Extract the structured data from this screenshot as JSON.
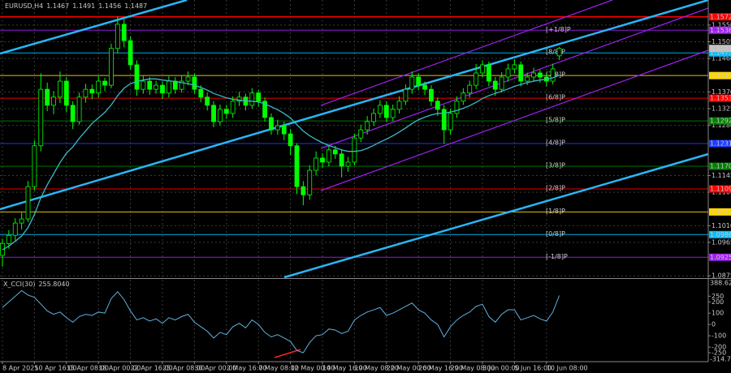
{
  "chart_data": {
    "type": "candlestick",
    "symbol": "EURUSD,H4",
    "categories": [
      "8 Apr 2025",
      null,
      null,
      null,
      null,
      "10 Apr 16:00",
      null,
      null,
      null,
      null,
      "15 Apr 08:00",
      null,
      null,
      null,
      null,
      "18 Apr 00:00",
      null,
      null,
      null,
      null,
      "22 Apr 16:00",
      null,
      null,
      null,
      null,
      "25 Apr 08:00",
      null,
      null,
      null,
      null,
      "30 Apr 00:00",
      null,
      null,
      null,
      null,
      "2 May 16:00",
      null,
      null,
      null,
      null,
      "7 May 08:00",
      null,
      null,
      null,
      null,
      "12 May 00:00",
      null,
      null,
      null,
      null,
      "14 May 16:00",
      null,
      null,
      null,
      null,
      "19 May 08:00",
      null,
      null,
      null,
      null,
      "22 May 00:00",
      null,
      null,
      null,
      null,
      "26 May 16:00",
      null,
      null,
      null,
      null,
      "29 May 08:00",
      null,
      null,
      null,
      null,
      "3 Jun 00:00",
      null,
      null,
      null,
      null,
      "5 Jun 16:00",
      null,
      null,
      null,
      null,
      "10 Jun 08:00",
      null,
      null
    ],
    "open": [
      1.093,
      1.0962,
      1.0984,
      1.1017,
      1.1028,
      1.1115,
      1.1225,
      1.1377,
      1.1334,
      1.1356,
      1.1399,
      1.1334,
      1.129,
      1.1356,
      1.1377,
      1.1367,
      1.1399,
      1.1388,
      1.1487,
      1.1552,
      1.1508,
      1.1443,
      1.1377,
      1.1399,
      1.1377,
      1.1388,
      1.1367,
      1.1399,
      1.1377,
      1.1399,
      1.141,
      1.1377,
      1.1356,
      1.1334,
      1.129,
      1.1323,
      1.1312,
      1.1345,
      1.1356,
      1.1334,
      1.1367,
      1.1345,
      1.1301,
      1.1268,
      1.1279,
      1.1257,
      1.1225,
      1.1115,
      1.1093,
      1.1159,
      1.1192,
      1.1181,
      1.1214,
      1.1203,
      1.117,
      1.1181,
      1.1246,
      1.1268,
      1.129,
      1.1312,
      1.1334,
      1.1301,
      1.1323,
      1.1345,
      1.1377,
      1.141,
      1.1388,
      1.1377,
      1.1345,
      1.1323,
      1.1268,
      1.1312,
      1.1345,
      1.1367,
      1.1388,
      1.1421,
      1.1443,
      1.1399,
      1.1377,
      1.141,
      1.1432,
      1.1443,
      1.1399,
      1.141,
      1.1421,
      1.141,
      1.1399,
      1.1467
    ],
    "high": [
      1.0975,
      1.0998,
      1.103,
      1.1045,
      1.113,
      1.124,
      1.142,
      1.1395,
      1.1372,
      1.1425,
      1.141,
      1.1345,
      1.1368,
      1.1392,
      1.139,
      1.1412,
      1.1408,
      1.15,
      1.1573,
      1.1565,
      1.152,
      1.1455,
      1.1415,
      1.141,
      1.14,
      1.1398,
      1.1412,
      1.141,
      1.1414,
      1.1425,
      1.142,
      1.1388,
      1.1368,
      1.1345,
      1.1336,
      1.1335,
      1.1358,
      1.137,
      1.1365,
      1.138,
      1.1375,
      1.1355,
      1.1312,
      1.1295,
      1.129,
      1.127,
      1.1232,
      1.113,
      1.1172,
      1.121,
      1.1205,
      1.1228,
      1.1225,
      1.1215,
      1.1195,
      1.1258,
      1.1282,
      1.1305,
      1.1325,
      1.1348,
      1.1345,
      1.1336,
      1.1358,
      1.139,
      1.1425,
      1.142,
      1.1398,
      1.1388,
      1.1355,
      1.1335,
      1.1325,
      1.1358,
      1.138,
      1.14,
      1.1445,
      1.1455,
      1.1452,
      1.141,
      1.1423,
      1.1446,
      1.1458,
      1.1452,
      1.1422,
      1.1435,
      1.143,
      1.142,
      1.1446,
      1.1491
    ],
    "low": [
      1.09,
      1.0948,
      1.097,
      1.1,
      1.102,
      1.1105,
      1.121,
      1.1318,
      1.131,
      1.134,
      1.1315,
      1.127,
      1.1282,
      1.1341,
      1.135,
      1.1355,
      1.1372,
      1.138,
      1.1475,
      1.149,
      1.143,
      1.136,
      1.1365,
      1.1362,
      1.1365,
      1.135,
      1.1355,
      1.1365,
      1.1368,
      1.1388,
      1.1365,
      1.1342,
      1.132,
      1.1275,
      1.128,
      1.1298,
      1.13,
      1.1332,
      1.132,
      1.1325,
      1.133,
      1.129,
      1.1255,
      1.1255,
      1.124,
      1.12,
      1.1095,
      1.1065,
      1.108,
      1.1145,
      1.1165,
      1.117,
      1.119,
      1.114,
      1.1155,
      1.1172,
      1.1235,
      1.1255,
      1.1278,
      1.13,
      1.129,
      1.1292,
      1.1312,
      1.1335,
      1.1365,
      1.1375,
      1.1362,
      1.1332,
      1.1305,
      1.123,
      1.1255,
      1.13,
      1.1335,
      1.1355,
      1.1378,
      1.141,
      1.1385,
      1.136,
      1.1368,
      1.1398,
      1.142,
      1.1385,
      1.1388,
      1.1398,
      1.1395,
      1.1385,
      1.139,
      1.1456
    ],
    "close": [
      1.0962,
      1.0984,
      1.1017,
      1.1028,
      1.1115,
      1.1225,
      1.1377,
      1.1334,
      1.1356,
      1.1399,
      1.1334,
      1.129,
      1.1356,
      1.1377,
      1.1367,
      1.1399,
      1.1388,
      1.1487,
      1.1552,
      1.1508,
      1.1443,
      1.1377,
      1.1399,
      1.1377,
      1.1388,
      1.1367,
      1.1399,
      1.1377,
      1.1399,
      1.141,
      1.1377,
      1.1356,
      1.1334,
      1.129,
      1.1323,
      1.1312,
      1.1345,
      1.1356,
      1.1334,
      1.1367,
      1.1345,
      1.1301,
      1.1268,
      1.1279,
      1.1257,
      1.1225,
      1.1115,
      1.1093,
      1.1159,
      1.1192,
      1.1181,
      1.1214,
      1.1203,
      1.117,
      1.1181,
      1.1246,
      1.1268,
      1.129,
      1.1312,
      1.1334,
      1.1301,
      1.1323,
      1.1345,
      1.1377,
      1.141,
      1.1388,
      1.1377,
      1.1345,
      1.1323,
      1.1268,
      1.1312,
      1.1345,
      1.1367,
      1.1388,
      1.1421,
      1.1443,
      1.1399,
      1.1377,
      1.141,
      1.1432,
      1.1443,
      1.1399,
      1.141,
      1.1421,
      1.141,
      1.1399,
      1.1432,
      1.1487
    ],
    "color": "#00ff00",
    "ma": {
      "color": "#3cb9c9",
      "values": [
        1.0945,
        1.0955,
        1.0968,
        1.0982,
        1.1005,
        1.104,
        1.1085,
        1.112,
        1.115,
        1.118,
        1.1205,
        1.1222,
        1.1245,
        1.1265,
        1.1285,
        1.13,
        1.1315,
        1.1335,
        1.136,
        1.138,
        1.1392,
        1.1398,
        1.1402,
        1.1405,
        1.1405,
        1.1402,
        1.14,
        1.1398,
        1.1395,
        1.1392,
        1.1388,
        1.1382,
        1.1375,
        1.1366,
        1.136,
        1.1354,
        1.135,
        1.1348,
        1.1346,
        1.1345,
        1.1343,
        1.1338,
        1.133,
        1.1322,
        1.1312,
        1.13,
        1.1282,
        1.1265,
        1.1252,
        1.1242,
        1.1233,
        1.1226,
        1.122,
        1.1214,
        1.121,
        1.121,
        1.1212,
        1.1218,
        1.1226,
        1.1235,
        1.1243,
        1.1252,
        1.1262,
        1.1273,
        1.1285,
        1.1295,
        1.1302,
        1.1308,
        1.1312,
        1.1313,
        1.1316,
        1.132,
        1.1326,
        1.1333,
        1.1342,
        1.1352,
        1.136,
        1.1366,
        1.1372,
        1.1378,
        1.1385,
        1.139,
        1.1395,
        1.1399,
        1.1402,
        1.1404,
        1.1408,
        1.1415
      ]
    },
    "ylim": [
      1.0871,
      1.1613
    ],
    "yticks": [
      {
        "value": 1.0875,
        "label": "1.0875"
      },
      {
        "value": 1.0965,
        "label": "1.0965"
      },
      {
        "value": 1.101,
        "label": "1.1010"
      },
      {
        "value": 1.11,
        "label": "1.1100"
      },
      {
        "value": 1.1145,
        "label": "1.1145"
      },
      {
        "value": 1.128,
        "label": "1.1280"
      },
      {
        "value": 1.1325,
        "label": "1.1325"
      },
      {
        "value": 1.137,
        "label": "1.1370"
      },
      {
        "value": 1.146,
        "label": "1.1460"
      },
      {
        "value": 1.1505,
        "label": "1.1505"
      },
      {
        "value": 1.155,
        "label": "1.1550"
      }
    ],
    "grid": true,
    "levels": [
      {
        "name": "[+1/8]P",
        "value": 1.1536,
        "label": "1.1536",
        "color": "#a020f0"
      },
      {
        "name": "[8/8]P",
        "value": 1.1475,
        "label": "1.1475",
        "color": "#00bfff"
      },
      {
        "name": "[7/8]P",
        "value": 1.1414,
        "label": "1.1414",
        "color": "#ffd700"
      },
      {
        "name": "[6/8]P",
        "value": 1.1353,
        "label": "1.1353",
        "color": "#ff0000"
      },
      {
        "name": "[5/8]P",
        "value": 1.1292,
        "label": "1.1292",
        "color": "#008000"
      },
      {
        "name": "[4/8]P",
        "value": 1.1231,
        "label": "1.1231",
        "color": "#1e3cff"
      },
      {
        "name": "[3/8]P",
        "value": 1.117,
        "label": "1.1170",
        "color": "#008000"
      },
      {
        "name": "[2/8]P",
        "value": 1.1109,
        "label": "1.1109",
        "color": "#ff0000"
      },
      {
        "name": "[1/8]P",
        "value": 1.1047,
        "label": "1.1047",
        "color": "#ffd700"
      },
      {
        "name": "[0/8]P",
        "value": 1.0986,
        "label": "1.0986",
        "color": "#00bfff"
      },
      {
        "name": "[-1/8]P",
        "value": 1.0925,
        "label": "1.0925",
        "color": "#a020f0"
      }
    ],
    "lines": [
      {
        "value": 1.1572,
        "label": "1.1572",
        "color": "#ff0000"
      }
    ],
    "indicator": {
      "name": "X_CCI(30)",
      "last_label": "255.8040",
      "color": "#5fb0e0",
      "values": [
        150,
        200,
        250,
        300,
        260,
        240,
        180,
        120,
        90,
        110,
        60,
        20,
        70,
        90,
        80,
        110,
        100,
        230,
        290,
        220,
        120,
        40,
        60,
        30,
        50,
        10,
        60,
        40,
        70,
        90,
        20,
        -20,
        -60,
        -120,
        -70,
        -90,
        -20,
        10,
        -30,
        40,
        0,
        -70,
        -110,
        -90,
        -120,
        -150,
        -230,
        -250,
        -160,
        -100,
        -90,
        -40,
        -50,
        -80,
        -60,
        40,
        80,
        110,
        130,
        150,
        80,
        100,
        130,
        160,
        190,
        130,
        100,
        40,
        0,
        -110,
        -20,
        40,
        80,
        110,
        160,
        180,
        70,
        20,
        90,
        130,
        130,
        40,
        60,
        80,
        50,
        30,
        110,
        255.804
      ],
      "ylim": [
        -314.734,
        388.6237
      ],
      "yticks": [
        -250,
        -200,
        -100,
        0,
        100,
        200,
        250
      ]
    }
  }
}
